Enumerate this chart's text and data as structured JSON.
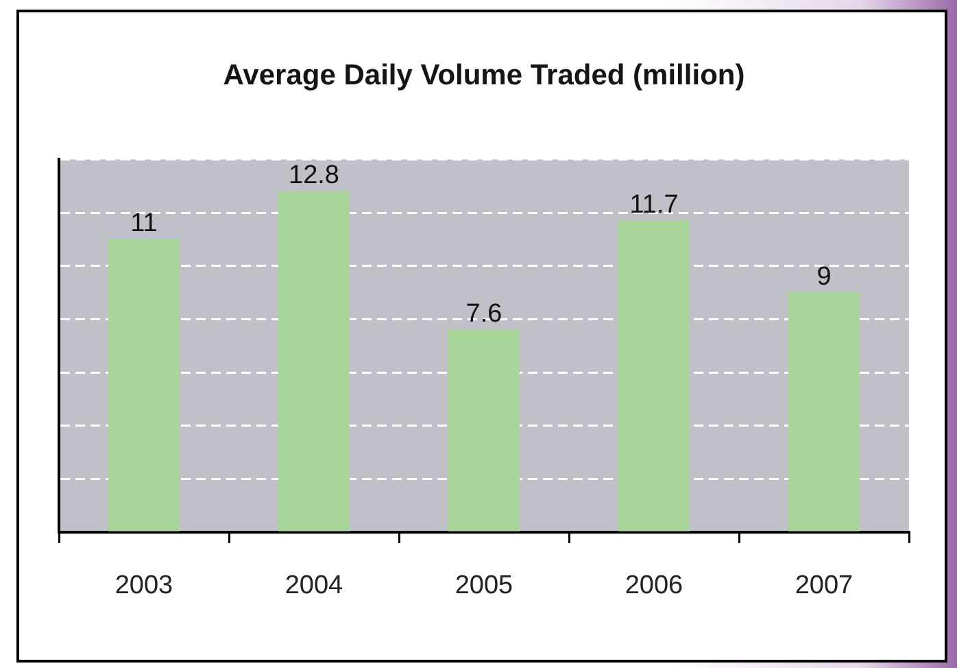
{
  "chart_data": {
    "type": "bar",
    "title": "Average Daily Volume Traded (million)",
    "categories": [
      "2003",
      "2004",
      "2005",
      "2006",
      "2007"
    ],
    "values": [
      11,
      12.8,
      7.6,
      11.7,
      9
    ],
    "color": "#a9d59b",
    "ylim": [
      0,
      14
    ],
    "yticks": [
      {
        "value": 0,
        "label": null
      },
      {
        "value": 2,
        "label": null
      },
      {
        "value": 4,
        "label": null
      },
      {
        "value": 6,
        "label": null
      },
      {
        "value": 8,
        "label": null
      },
      {
        "value": 10,
        "label": null
      },
      {
        "value": 12,
        "label": null
      },
      {
        "value": 14,
        "label": null
      }
    ],
    "grid": "y",
    "tick_labels": "x",
    "data_labels": true
  }
}
